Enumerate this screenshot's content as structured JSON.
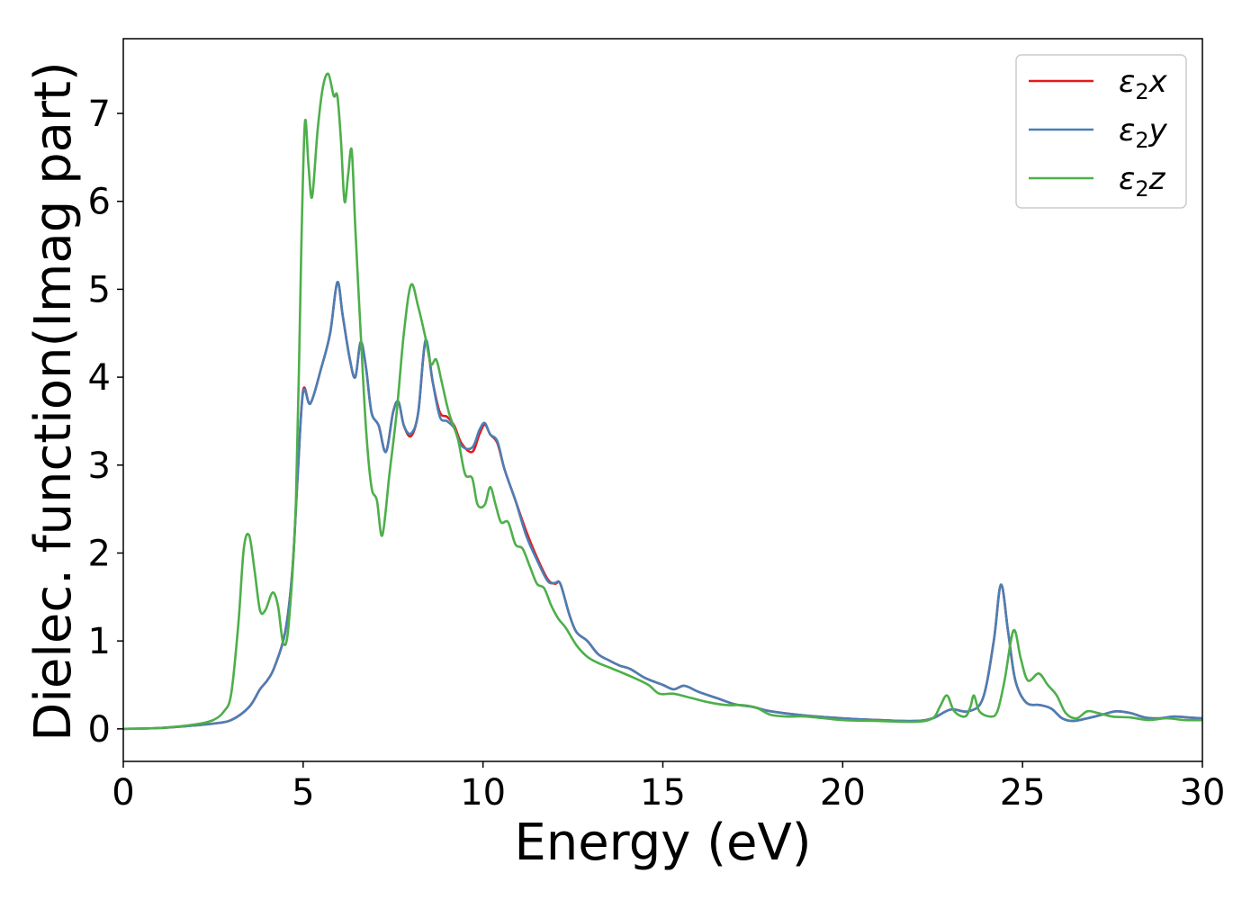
{
  "chart_data": {
    "type": "line",
    "title": "",
    "xlabel": "Energy (eV)",
    "ylabel": "Dielec. function(Imag part)",
    "xlim": [
      0,
      30
    ],
    "ylim": [
      -0.37,
      7.85
    ],
    "xticks": [
      0,
      5,
      10,
      15,
      20,
      25,
      30
    ],
    "yticks": [
      0,
      1,
      2,
      3,
      4,
      5,
      6,
      7
    ],
    "grid": false,
    "legend_position": "top-right",
    "series": [
      {
        "name": "ε₂x",
        "legend": {
          "base": "ε",
          "sub": "2",
          "var": "x"
        },
        "color": "#e41a1c",
        "points": [
          [
            0,
            0
          ],
          [
            1,
            0.01
          ],
          [
            2,
            0.04
          ],
          [
            2.5,
            0.06
          ],
          [
            3,
            0.1
          ],
          [
            3.5,
            0.25
          ],
          [
            3.8,
            0.45
          ],
          [
            4,
            0.55
          ],
          [
            4.2,
            0.7
          ],
          [
            4.5,
            1.1
          ],
          [
            4.7,
            1.8
          ],
          [
            4.85,
            2.9
          ],
          [
            5,
            3.85
          ],
          [
            5.2,
            3.7
          ],
          [
            5.5,
            4.1
          ],
          [
            5.75,
            4.5
          ],
          [
            5.95,
            5.08
          ],
          [
            6.1,
            4.7
          ],
          [
            6.3,
            4.2
          ],
          [
            6.45,
            4.0
          ],
          [
            6.6,
            4.4
          ],
          [
            6.75,
            4.1
          ],
          [
            6.9,
            3.6
          ],
          [
            7.1,
            3.45
          ],
          [
            7.3,
            3.15
          ],
          [
            7.5,
            3.6
          ],
          [
            7.65,
            3.72
          ],
          [
            7.8,
            3.45
          ],
          [
            8,
            3.33
          ],
          [
            8.2,
            3.6
          ],
          [
            8.4,
            4.4
          ],
          [
            8.6,
            3.95
          ],
          [
            8.8,
            3.6
          ],
          [
            9,
            3.55
          ],
          [
            9.2,
            3.45
          ],
          [
            9.4,
            3.25
          ],
          [
            9.7,
            3.15
          ],
          [
            9.9,
            3.35
          ],
          [
            10.05,
            3.46
          ],
          [
            10.2,
            3.35
          ],
          [
            10.4,
            3.25
          ],
          [
            10.6,
            2.95
          ],
          [
            10.9,
            2.6
          ],
          [
            11.2,
            2.25
          ],
          [
            11.5,
            1.95
          ],
          [
            11.8,
            1.7
          ],
          [
            12,
            1.65
          ],
          [
            12.15,
            1.65
          ],
          [
            12.4,
            1.3
          ],
          [
            12.6,
            1.1
          ],
          [
            12.9,
            1.0
          ],
          [
            13.2,
            0.85
          ],
          [
            13.5,
            0.78
          ],
          [
            13.8,
            0.72
          ],
          [
            14.1,
            0.68
          ],
          [
            14.5,
            0.58
          ],
          [
            15,
            0.5
          ],
          [
            15.3,
            0.45
          ],
          [
            15.6,
            0.49
          ],
          [
            16,
            0.42
          ],
          [
            16.5,
            0.35
          ],
          [
            17,
            0.28
          ],
          [
            17.5,
            0.25
          ],
          [
            18,
            0.2
          ],
          [
            19,
            0.15
          ],
          [
            20,
            0.12
          ],
          [
            21,
            0.1
          ],
          [
            22,
            0.09
          ],
          [
            22.5,
            0.12
          ],
          [
            23,
            0.22
          ],
          [
            23.5,
            0.2
          ],
          [
            23.9,
            0.35
          ],
          [
            24.2,
            1.0
          ],
          [
            24.4,
            1.64
          ],
          [
            24.6,
            1.1
          ],
          [
            24.8,
            0.55
          ],
          [
            25.1,
            0.3
          ],
          [
            25.5,
            0.27
          ],
          [
            25.8,
            0.23
          ],
          [
            26.1,
            0.12
          ],
          [
            26.4,
            0.09
          ],
          [
            26.8,
            0.12
          ],
          [
            27.2,
            0.16
          ],
          [
            27.6,
            0.2
          ],
          [
            28,
            0.18
          ],
          [
            28.4,
            0.13
          ],
          [
            28.8,
            0.12
          ],
          [
            29.2,
            0.14
          ],
          [
            29.6,
            0.13
          ],
          [
            30,
            0.12
          ]
        ]
      },
      {
        "name": "ε₂y",
        "legend": {
          "base": "ε",
          "sub": "2",
          "var": "y"
        },
        "color": "#4a7fb5",
        "points": [
          [
            0,
            0
          ],
          [
            1,
            0.01
          ],
          [
            2,
            0.04
          ],
          [
            2.5,
            0.06
          ],
          [
            3,
            0.1
          ],
          [
            3.5,
            0.25
          ],
          [
            3.8,
            0.45
          ],
          [
            4,
            0.55
          ],
          [
            4.2,
            0.7
          ],
          [
            4.5,
            1.1
          ],
          [
            4.7,
            1.8
          ],
          [
            4.85,
            2.9
          ],
          [
            5,
            3.83
          ],
          [
            5.2,
            3.7
          ],
          [
            5.5,
            4.1
          ],
          [
            5.75,
            4.5
          ],
          [
            5.95,
            5.08
          ],
          [
            6.1,
            4.7
          ],
          [
            6.3,
            4.2
          ],
          [
            6.45,
            4.0
          ],
          [
            6.6,
            4.4
          ],
          [
            6.75,
            4.1
          ],
          [
            6.9,
            3.6
          ],
          [
            7.1,
            3.45
          ],
          [
            7.3,
            3.15
          ],
          [
            7.5,
            3.6
          ],
          [
            7.65,
            3.72
          ],
          [
            7.8,
            3.45
          ],
          [
            8,
            3.36
          ],
          [
            8.2,
            3.6
          ],
          [
            8.4,
            4.42
          ],
          [
            8.6,
            3.95
          ],
          [
            8.8,
            3.55
          ],
          [
            9,
            3.5
          ],
          [
            9.2,
            3.42
          ],
          [
            9.4,
            3.22
          ],
          [
            9.7,
            3.2
          ],
          [
            9.9,
            3.4
          ],
          [
            10.05,
            3.48
          ],
          [
            10.2,
            3.35
          ],
          [
            10.4,
            3.27
          ],
          [
            10.6,
            2.95
          ],
          [
            10.9,
            2.6
          ],
          [
            11.2,
            2.2
          ],
          [
            11.5,
            1.92
          ],
          [
            11.8,
            1.68
          ],
          [
            12,
            1.66
          ],
          [
            12.15,
            1.65
          ],
          [
            12.4,
            1.3
          ],
          [
            12.6,
            1.1
          ],
          [
            12.9,
            1.0
          ],
          [
            13.2,
            0.85
          ],
          [
            13.5,
            0.78
          ],
          [
            13.8,
            0.72
          ],
          [
            14.1,
            0.68
          ],
          [
            14.5,
            0.58
          ],
          [
            15,
            0.5
          ],
          [
            15.3,
            0.45
          ],
          [
            15.6,
            0.49
          ],
          [
            16,
            0.42
          ],
          [
            16.5,
            0.35
          ],
          [
            17,
            0.28
          ],
          [
            17.5,
            0.25
          ],
          [
            18,
            0.2
          ],
          [
            19,
            0.15
          ],
          [
            20,
            0.12
          ],
          [
            21,
            0.1
          ],
          [
            22,
            0.09
          ],
          [
            22.5,
            0.12
          ],
          [
            23,
            0.22
          ],
          [
            23.5,
            0.2
          ],
          [
            23.9,
            0.35
          ],
          [
            24.2,
            1.0
          ],
          [
            24.4,
            1.64
          ],
          [
            24.6,
            1.1
          ],
          [
            24.8,
            0.55
          ],
          [
            25.1,
            0.3
          ],
          [
            25.5,
            0.27
          ],
          [
            25.8,
            0.23
          ],
          [
            26.1,
            0.12
          ],
          [
            26.4,
            0.09
          ],
          [
            26.8,
            0.12
          ],
          [
            27.2,
            0.16
          ],
          [
            27.6,
            0.2
          ],
          [
            28,
            0.18
          ],
          [
            28.4,
            0.13
          ],
          [
            28.8,
            0.12
          ],
          [
            29.2,
            0.14
          ],
          [
            29.6,
            0.13
          ],
          [
            30,
            0.12
          ]
        ]
      },
      {
        "name": "ε₂z",
        "legend": {
          "base": "ε",
          "sub": "2",
          "var": "z"
        },
        "color": "#4daf4a",
        "points": [
          [
            0,
            0
          ],
          [
            1,
            0.01
          ],
          [
            2,
            0.05
          ],
          [
            2.5,
            0.1
          ],
          [
            2.8,
            0.2
          ],
          [
            3,
            0.4
          ],
          [
            3.2,
            1.2
          ],
          [
            3.35,
            2.05
          ],
          [
            3.5,
            2.2
          ],
          [
            3.65,
            1.8
          ],
          [
            3.8,
            1.35
          ],
          [
            3.95,
            1.35
          ],
          [
            4.15,
            1.55
          ],
          [
            4.3,
            1.4
          ],
          [
            4.45,
            0.97
          ],
          [
            4.6,
            1.2
          ],
          [
            4.8,
            2.6
          ],
          [
            4.95,
            5.5
          ],
          [
            5.05,
            6.9
          ],
          [
            5.15,
            6.4
          ],
          [
            5.25,
            6.05
          ],
          [
            5.4,
            6.8
          ],
          [
            5.55,
            7.3
          ],
          [
            5.7,
            7.45
          ],
          [
            5.85,
            7.2
          ],
          [
            5.95,
            7.2
          ],
          [
            6.05,
            6.7
          ],
          [
            6.15,
            6.0
          ],
          [
            6.25,
            6.3
          ],
          [
            6.35,
            6.58
          ],
          [
            6.45,
            5.7
          ],
          [
            6.6,
            4.5
          ],
          [
            6.75,
            3.4
          ],
          [
            6.9,
            2.75
          ],
          [
            7.05,
            2.6
          ],
          [
            7.2,
            2.2
          ],
          [
            7.4,
            2.9
          ],
          [
            7.6,
            3.6
          ],
          [
            7.8,
            4.5
          ],
          [
            8,
            5.05
          ],
          [
            8.2,
            4.8
          ],
          [
            8.4,
            4.45
          ],
          [
            8.55,
            4.15
          ],
          [
            8.7,
            4.2
          ],
          [
            8.85,
            3.95
          ],
          [
            9.05,
            3.6
          ],
          [
            9.3,
            3.3
          ],
          [
            9.5,
            2.9
          ],
          [
            9.7,
            2.85
          ],
          [
            9.85,
            2.55
          ],
          [
            10.05,
            2.55
          ],
          [
            10.2,
            2.75
          ],
          [
            10.35,
            2.55
          ],
          [
            10.5,
            2.35
          ],
          [
            10.7,
            2.35
          ],
          [
            10.9,
            2.1
          ],
          [
            11.1,
            2.05
          ],
          [
            11.3,
            1.85
          ],
          [
            11.5,
            1.65
          ],
          [
            11.7,
            1.6
          ],
          [
            11.9,
            1.4
          ],
          [
            12.1,
            1.25
          ],
          [
            12.3,
            1.15
          ],
          [
            12.6,
            0.95
          ],
          [
            12.9,
            0.82
          ],
          [
            13.2,
            0.75
          ],
          [
            13.5,
            0.7
          ],
          [
            13.8,
            0.65
          ],
          [
            14.2,
            0.58
          ],
          [
            14.6,
            0.5
          ],
          [
            14.9,
            0.4
          ],
          [
            15.3,
            0.4
          ],
          [
            15.8,
            0.35
          ],
          [
            16.3,
            0.3
          ],
          [
            16.8,
            0.27
          ],
          [
            17.2,
            0.27
          ],
          [
            17.6,
            0.24
          ],
          [
            18,
            0.16
          ],
          [
            18.5,
            0.14
          ],
          [
            19,
            0.14
          ],
          [
            20,
            0.1
          ],
          [
            21,
            0.09
          ],
          [
            22,
            0.08
          ],
          [
            22.5,
            0.12
          ],
          [
            22.7,
            0.25
          ],
          [
            22.9,
            0.38
          ],
          [
            23.1,
            0.2
          ],
          [
            23.4,
            0.14
          ],
          [
            23.55,
            0.25
          ],
          [
            23.65,
            0.38
          ],
          [
            23.8,
            0.2
          ],
          [
            24.1,
            0.14
          ],
          [
            24.3,
            0.2
          ],
          [
            24.5,
            0.55
          ],
          [
            24.75,
            1.12
          ],
          [
            24.95,
            0.8
          ],
          [
            25.15,
            0.55
          ],
          [
            25.45,
            0.63
          ],
          [
            25.7,
            0.5
          ],
          [
            25.95,
            0.38
          ],
          [
            26.2,
            0.18
          ],
          [
            26.5,
            0.12
          ],
          [
            26.8,
            0.2
          ],
          [
            27.1,
            0.18
          ],
          [
            27.5,
            0.14
          ],
          [
            28,
            0.13
          ],
          [
            28.5,
            0.1
          ],
          [
            29,
            0.12
          ],
          [
            29.5,
            0.1
          ],
          [
            30,
            0.1
          ]
        ]
      }
    ]
  }
}
